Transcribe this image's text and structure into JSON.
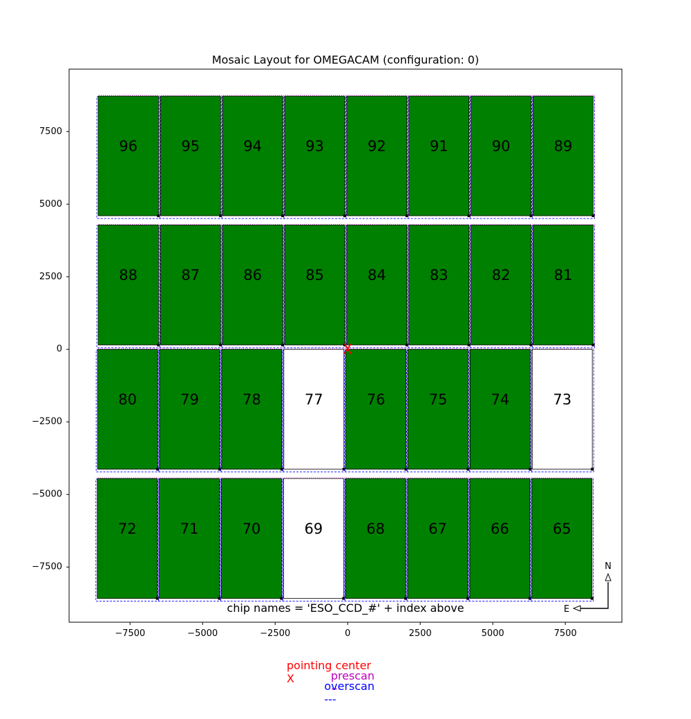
{
  "chart_data": {
    "type": "mosaic",
    "title": "Mosaic Layout for OMEGACAM (configuration: 0)",
    "xlim": [
      -9600,
      9450
    ],
    "ylim": [
      -9400,
      9650
    ],
    "x_ticks": [
      -7500,
      -5000,
      -2500,
      0,
      2500,
      5000,
      7500
    ],
    "y_ticks": [
      7500,
      5000,
      2500,
      0,
      -2500,
      -5000,
      -7500
    ],
    "x_tick_labels": [
      "−7500",
      "−5000",
      "−2500",
      "0",
      "2500",
      "5000",
      "7500"
    ],
    "y_tick_labels": [
      "7500",
      "5000",
      "2500",
      "0",
      "−2500",
      "−5000",
      "−7500"
    ],
    "chips": [
      {
        "label": "96",
        "x0": -8600,
        "x1": -6520,
        "y0": 4600,
        "y1": 8720,
        "filled": true
      },
      {
        "label": "95",
        "x0": -6450,
        "x1": -4380,
        "y0": 4600,
        "y1": 8720,
        "filled": true
      },
      {
        "label": "94",
        "x0": -4310,
        "x1": -2240,
        "y0": 4600,
        "y1": 8720,
        "filled": true
      },
      {
        "label": "93",
        "x0": -2170,
        "x1": -100,
        "y0": 4600,
        "y1": 8720,
        "filled": true
      },
      {
        "label": "92",
        "x0": -30,
        "x1": 2040,
        "y0": 4600,
        "y1": 8720,
        "filled": true
      },
      {
        "label": "91",
        "x0": 2110,
        "x1": 4180,
        "y0": 4600,
        "y1": 8720,
        "filled": true
      },
      {
        "label": "90",
        "x0": 4250,
        "x1": 6320,
        "y0": 4600,
        "y1": 8720,
        "filled": true
      },
      {
        "label": "89",
        "x0": 6390,
        "x1": 8460,
        "y0": 4600,
        "y1": 8720,
        "filled": true
      },
      {
        "label": "88",
        "x0": -8600,
        "x1": -6520,
        "y0": 150,
        "y1": 4280,
        "filled": true
      },
      {
        "label": "87",
        "x0": -6450,
        "x1": -4380,
        "y0": 150,
        "y1": 4280,
        "filled": true
      },
      {
        "label": "86",
        "x0": -4310,
        "x1": -2240,
        "y0": 150,
        "y1": 4280,
        "filled": true
      },
      {
        "label": "85",
        "x0": -2170,
        "x1": -100,
        "y0": 150,
        "y1": 4280,
        "filled": true
      },
      {
        "label": "84",
        "x0": -30,
        "x1": 2040,
        "y0": 150,
        "y1": 4280,
        "filled": true
      },
      {
        "label": "83",
        "x0": 2110,
        "x1": 4180,
        "y0": 150,
        "y1": 4280,
        "filled": true
      },
      {
        "label": "82",
        "x0": 4250,
        "x1": 6320,
        "y0": 150,
        "y1": 4280,
        "filled": true
      },
      {
        "label": "81",
        "x0": 6390,
        "x1": 8460,
        "y0": 150,
        "y1": 4280,
        "filled": true
      },
      {
        "label": "80",
        "x0": -8620,
        "x1": -6550,
        "y0": -4130,
        "y1": 0,
        "filled": true
      },
      {
        "label": "79",
        "x0": -6480,
        "x1": -4410,
        "y0": -4130,
        "y1": 0,
        "filled": true
      },
      {
        "label": "78",
        "x0": -4340,
        "x1": -2270,
        "y0": -4130,
        "y1": 0,
        "filled": true
      },
      {
        "label": "77",
        "x0": -2200,
        "x1": -130,
        "y0": -4130,
        "y1": 0,
        "filled": false
      },
      {
        "label": "76",
        "x0": -60,
        "x1": 2010,
        "y0": -4130,
        "y1": 0,
        "filled": true
      },
      {
        "label": "75",
        "x0": 2080,
        "x1": 4150,
        "y0": -4130,
        "y1": 0,
        "filled": true
      },
      {
        "label": "74",
        "x0": 4220,
        "x1": 6290,
        "y0": -4130,
        "y1": 0,
        "filled": true
      },
      {
        "label": "73",
        "x0": 6360,
        "x1": 8430,
        "y0": -4130,
        "y1": 0,
        "filled": false
      },
      {
        "label": "72",
        "x0": -8630,
        "x1": -6560,
        "y0": -8580,
        "y1": -4450,
        "filled": true
      },
      {
        "label": "71",
        "x0": -6490,
        "x1": -4420,
        "y0": -8580,
        "y1": -4450,
        "filled": true
      },
      {
        "label": "70",
        "x0": -4350,
        "x1": -2280,
        "y0": -8580,
        "y1": -4450,
        "filled": true
      },
      {
        "label": "69",
        "x0": -2210,
        "x1": -140,
        "y0": -8580,
        "y1": -4450,
        "filled": false
      },
      {
        "label": "68",
        "x0": -70,
        "x1": 2000,
        "y0": -8580,
        "y1": -4450,
        "filled": true
      },
      {
        "label": "67",
        "x0": 2070,
        "x1": 4140,
        "y0": -8580,
        "y1": -4450,
        "filled": true
      },
      {
        "label": "66",
        "x0": 4210,
        "x1": 6280,
        "y0": -8580,
        "y1": -4450,
        "filled": true
      },
      {
        "label": "65",
        "x0": 6350,
        "x1": 8420,
        "y0": -8580,
        "y1": -4450,
        "filled": true
      }
    ],
    "pointing_center": {
      "x": 0,
      "y": 0,
      "marker": "X"
    },
    "annotation": "chip names = 'ESO_CCD_#' + index above",
    "compass": {
      "north": "N",
      "east": "E"
    },
    "legend": [
      {
        "label": "pointing center",
        "symbol": "X",
        "color": "#ff0000"
      },
      {
        "label": "prescan",
        "symbol": "···",
        "color": "#bf00bf"
      },
      {
        "label": "overscan",
        "symbol": "---",
        "color": "#0000ff"
      }
    ],
    "colors": {
      "chip_fill": "#008000",
      "chip_empty": "#ffffff",
      "frame": "#000000"
    }
  }
}
